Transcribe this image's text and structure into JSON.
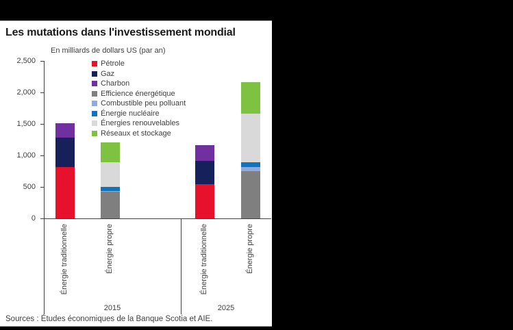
{
  "panel": {
    "title": "Les mutations dans l'investissement mondial",
    "subtitle": "En milliards de dollars US (par an)",
    "source": "Sources : Études économiques de la Banque Scotia et AIE."
  },
  "chart_data": {
    "type": "bar",
    "stacked": true,
    "title": "Les mutations dans l'investissement mondial",
    "subtitle": "En milliards de dollars US (par an)",
    "ylabel": "En milliards de dollars US (par an)",
    "ylim": [
      0,
      2500
    ],
    "ytick_values": [
      0,
      500,
      1000,
      1500,
      2000,
      2500
    ],
    "ytick_labels": [
      "0",
      "500",
      "1,000",
      "1,500",
      "2,000",
      "2,500"
    ],
    "grid": false,
    "legend_position": "top-left-inside",
    "legend": [
      {
        "label": "Pétrole",
        "color": "#e8112d"
      },
      {
        "label": "Gaz",
        "color": "#16215c"
      },
      {
        "label": "Charbon",
        "color": "#7030a0"
      },
      {
        "label": "Efficience énergétique",
        "color": "#7f7f7f"
      },
      {
        "label": "Combustible peu polluant",
        "color": "#8faadc"
      },
      {
        "label": "Énergie nucléaire",
        "color": "#0f74bd"
      },
      {
        "label": "Énergies renouvelables",
        "color": "#d9d9d9"
      },
      {
        "label": "Réseaux et stockage",
        "color": "#7fc241"
      }
    ],
    "groups": [
      {
        "label": "2015",
        "bars": [
          {
            "category": "Énergie traditionnelle",
            "segments": [
              {
                "series": "Pétrole",
                "value": 820
              },
              {
                "series": "Gaz",
                "value": 460
              },
              {
                "series": "Charbon",
                "value": 230
              }
            ]
          },
          {
            "category": "Énergie propre",
            "segments": [
              {
                "series": "Efficience énergétique",
                "value": 425
              },
              {
                "series": "Combustible peu polluant",
                "value": 10
              },
              {
                "series": "Énergie nucléaire",
                "value": 65
              },
              {
                "series": "Énergies renouvelables",
                "value": 390
              },
              {
                "series": "Réseaux et stockage",
                "value": 315
              }
            ]
          }
        ]
      },
      {
        "label": "2025",
        "bars": [
          {
            "category": "Énergie traditionnelle",
            "segments": [
              {
                "series": "Pétrole",
                "value": 540
              },
              {
                "series": "Gaz",
                "value": 370
              },
              {
                "series": "Charbon",
                "value": 250
              }
            ]
          },
          {
            "category": "Énergie propre",
            "segments": [
              {
                "series": "Efficience énergétique",
                "value": 755
              },
              {
                "series": "Combustible peu polluant",
                "value": 55
              },
              {
                "series": "Énergie nucléaire",
                "value": 85
              },
              {
                "series": "Énergies renouvelables",
                "value": 770
              },
              {
                "series": "Réseaux et stockage",
                "value": 500
              }
            ]
          }
        ]
      }
    ]
  }
}
